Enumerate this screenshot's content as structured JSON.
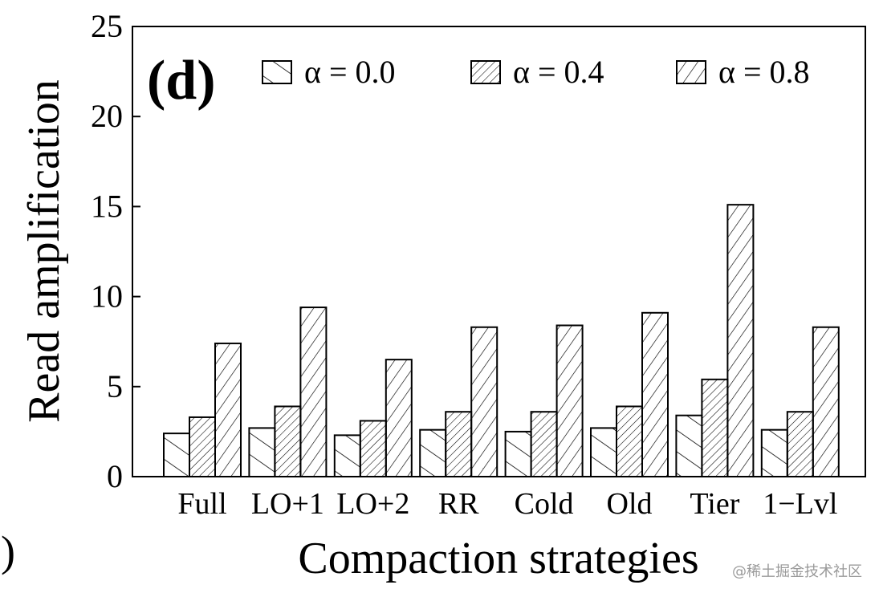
{
  "chart_data": {
    "type": "bar",
    "panel_label": "(d)",
    "xlabel": "Compaction strategies",
    "ylabel": "Read amplification",
    "ylim": [
      0,
      25
    ],
    "yticks": [
      "0",
      "5",
      "10",
      "15",
      "20",
      "25"
    ],
    "categories": [
      "Full",
      "LO+1",
      "LO+2",
      "RR",
      "Cold",
      "Old",
      "Tier",
      "1−Lvl"
    ],
    "series": [
      {
        "name": "α = 0.0",
        "pattern": "backslash-sparse",
        "values": [
          2.4,
          2.7,
          2.3,
          2.6,
          2.5,
          2.7,
          3.4,
          2.6
        ]
      },
      {
        "name": "α = 0.4",
        "pattern": "slash-dense",
        "values": [
          3.3,
          3.9,
          3.1,
          3.6,
          3.6,
          3.9,
          5.4,
          3.6
        ]
      },
      {
        "name": "α = 0.8",
        "pattern": "slash-medium",
        "values": [
          7.4,
          9.4,
          6.5,
          8.3,
          8.4,
          9.1,
          15.1,
          8.3
        ]
      }
    ],
    "legend_position": "top-right",
    "grid": false
  },
  "fragment_label": "b)",
  "watermark": "@稀土掘金技术社区"
}
